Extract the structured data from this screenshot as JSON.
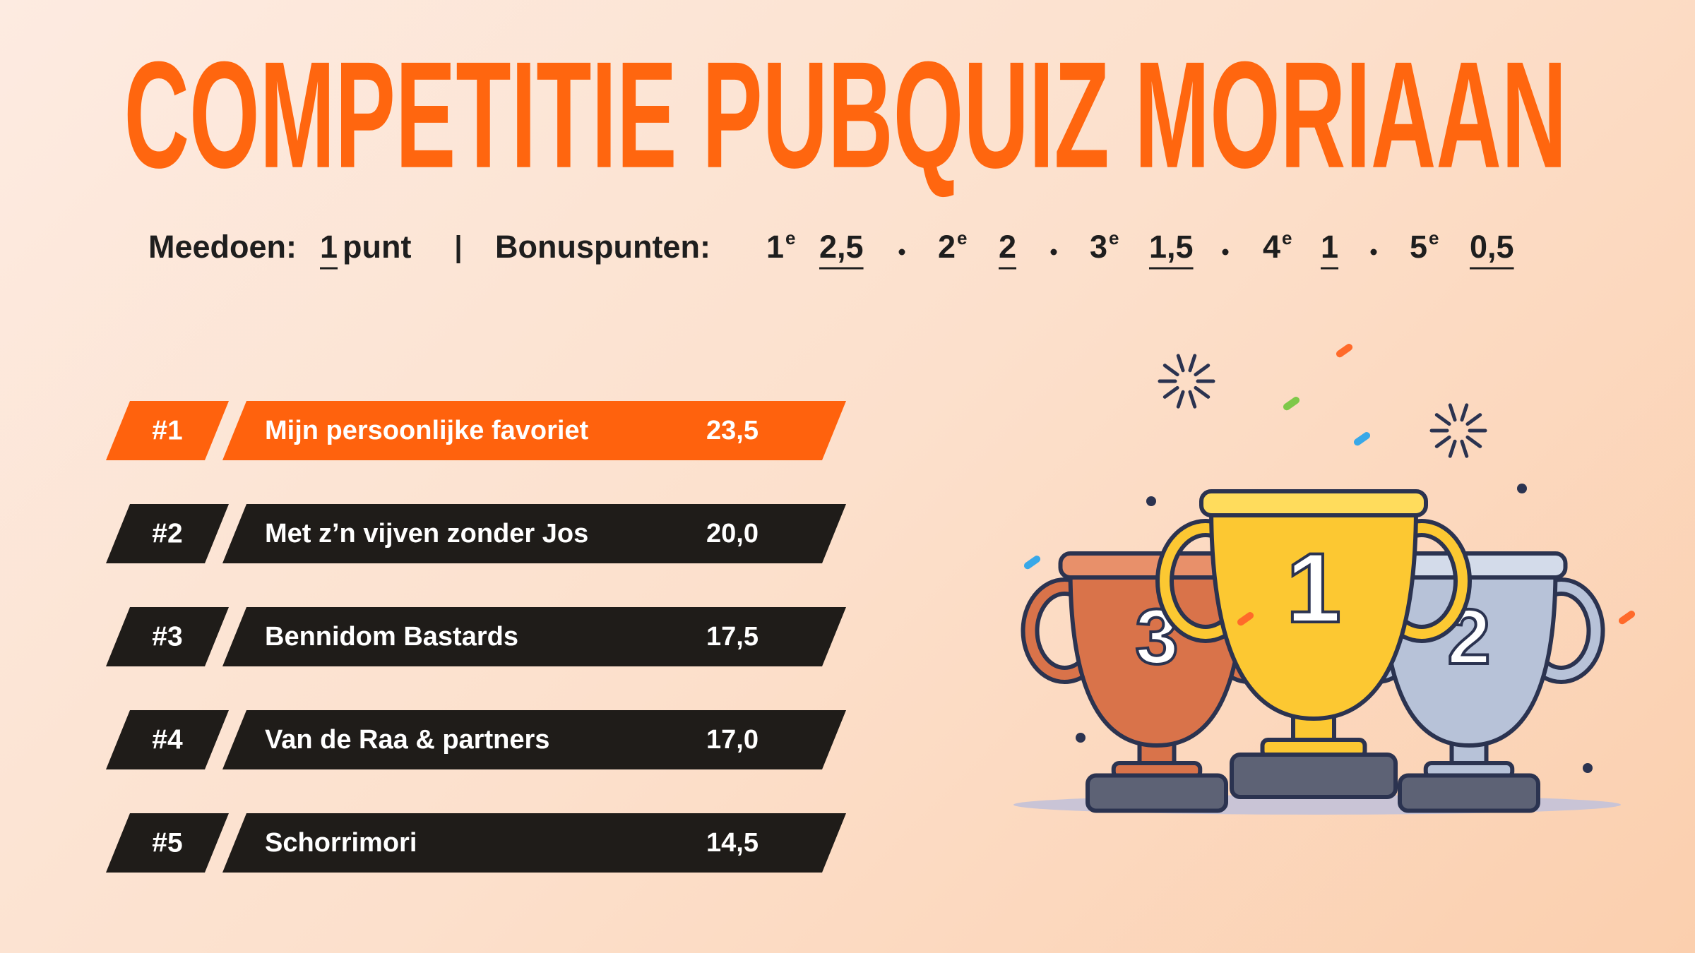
{
  "title": "COMPETITIE PUBQUIZ MORIAAN",
  "rules": {
    "participation": {
      "label": "Meedoen:",
      "points": "1",
      "unit": "punt"
    },
    "bonus": {
      "label": "Bonuspunten:",
      "places": [
        {
          "place": "1",
          "suffix": "e",
          "points": "2,5"
        },
        {
          "place": "2",
          "suffix": "e",
          "points": "2"
        },
        {
          "place": "3",
          "suffix": "e",
          "points": "1,5"
        },
        {
          "place": "4",
          "suffix": "e",
          "points": "1"
        },
        {
          "place": "5",
          "suffix": "e",
          "points": "0,5"
        }
      ]
    }
  },
  "standings": [
    {
      "rank": "#1",
      "team": "Mijn persoonlijke favoriet",
      "score": "23,5"
    },
    {
      "rank": "#2",
      "team": "Met z’n vijven zonder Jos",
      "score": "20,0"
    },
    {
      "rank": "#3",
      "team": "Bennidom Bastards",
      "score": "17,5"
    },
    {
      "rank": "#4",
      "team": "Van de Raa & partners",
      "score": "17,0"
    },
    {
      "rank": "#5",
      "team": "Schorrimori",
      "score": "14,5"
    }
  ],
  "illustration": {
    "trophies": [
      "3",
      "2",
      "1"
    ]
  }
}
